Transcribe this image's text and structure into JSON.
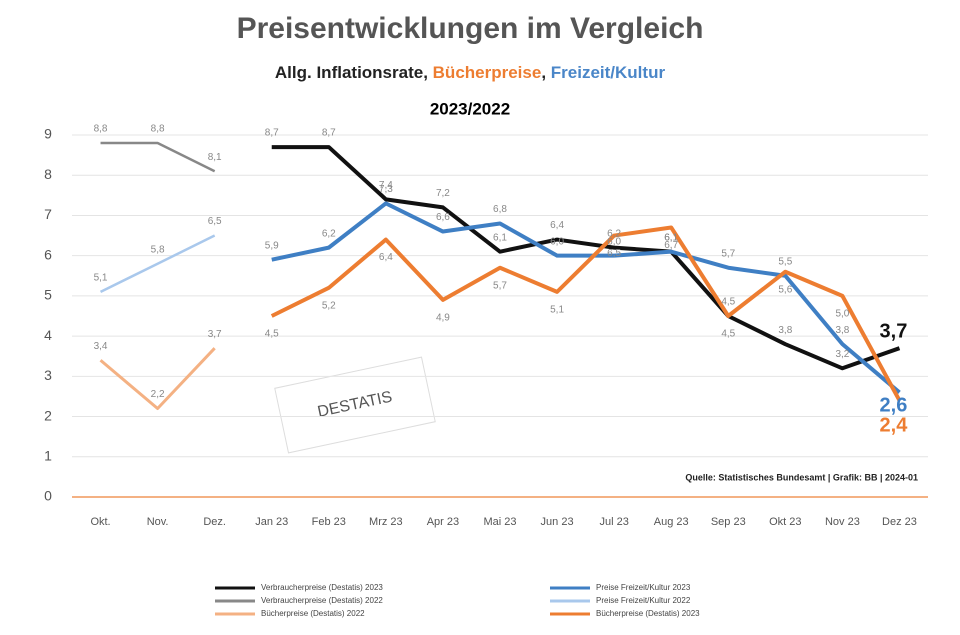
{
  "chart_data": {
    "type": "line",
    "title": "Preisentwicklungen im  Vergleich",
    "subtitle_parts": [
      {
        "text": "Allg. Inflationsrate, ",
        "color": "#222222"
      },
      {
        "text": "Bücherpreise",
        "color": "#ed7d31"
      },
      {
        "text": ", ",
        "color": "#222222"
      },
      {
        "text": "Freizeit/Kultur",
        "color": "#4a86c8"
      }
    ],
    "subtitle2": "2023/2022",
    "source": "Quelle: Statistisches Bundesamt | Grafik: BB | 2024-01",
    "stamp": "DESTATIS",
    "categories": [
      "Okt.",
      "Nov.",
      "Dez.",
      "Jan 23",
      "Feb 23",
      "Mrz 23",
      "Apr 23",
      "Mai 23",
      "Jun 23",
      "Jul 23",
      "Aug 23",
      "Sep 23",
      "Okt 23",
      "Nov 23",
      "Dez 23"
    ],
    "ylim": [
      0,
      9
    ],
    "yticks": [
      0,
      1,
      2,
      3,
      4,
      5,
      6,
      7,
      8,
      9
    ],
    "grid": true,
    "series": [
      {
        "name": "Verbraucherpreise (Destatis) 2023",
        "color": "#111111",
        "width": 4,
        "values": [
          null,
          null,
          null,
          8.7,
          8.7,
          7.4,
          7.2,
          6.1,
          6.4,
          6.2,
          6.1,
          4.5,
          3.8,
          3.2,
          3.7
        ],
        "value_labels": [
          null,
          null,
          null,
          "8,7",
          "8,7",
          "7,4",
          "7,2",
          "6,1",
          "6,4",
          "6,2",
          "6,1",
          "4,5",
          "3,8",
          "3,2",
          "3,7"
        ]
      },
      {
        "name": "Verbraucherpreise (Destatis) 2022",
        "color": "#888888",
        "width": 2.5,
        "values": [
          8.8,
          8.8,
          8.1,
          null,
          null,
          null,
          null,
          null,
          null,
          null,
          null,
          null,
          null,
          null,
          null
        ],
        "value_labels": [
          "8,8",
          "8,8",
          "8,1",
          null,
          null,
          null,
          null,
          null,
          null,
          null,
          null,
          null,
          null,
          null,
          null
        ]
      },
      {
        "name": "Bücherpreise (Destatis) 2022",
        "color": "#f4b183",
        "width": 3,
        "values": [
          3.4,
          2.2,
          3.7,
          null,
          null,
          null,
          null,
          null,
          null,
          null,
          null,
          null,
          null,
          null,
          null
        ],
        "value_labels": [
          "3,4",
          "2,2",
          "3,7",
          null,
          null,
          null,
          null,
          null,
          null,
          null,
          null,
          null,
          null,
          null,
          null
        ]
      },
      {
        "name": "Preise Freizeit/Kultur 2023",
        "color": "#3f7fc4",
        "width": 4,
        "values": [
          null,
          null,
          null,
          5.9,
          6.2,
          7.3,
          6.6,
          6.8,
          6.0,
          6.0,
          6.1,
          5.7,
          5.5,
          3.8,
          2.6
        ],
        "value_labels": [
          null,
          null,
          null,
          "5,9",
          "6,2",
          "7,3",
          "6,6",
          "6,8",
          "6,0",
          "6,0",
          "6,1",
          "5,7",
          "5,5",
          "3,8",
          "2,6"
        ]
      },
      {
        "name": "Preise Freizeit/Kultur 2022",
        "color": "#a9c8ec",
        "width": 2.5,
        "values": [
          5.1,
          5.8,
          6.5,
          null,
          null,
          null,
          null,
          null,
          null,
          null,
          null,
          null,
          null,
          null,
          null
        ],
        "value_labels": [
          "5,1",
          "5,8",
          "6,5",
          null,
          null,
          null,
          null,
          null,
          null,
          null,
          null,
          null,
          null,
          null,
          null
        ]
      },
      {
        "name": "Bücherpreise (Destatis) 2023",
        "color": "#ed7d31",
        "width": 4,
        "values": [
          null,
          null,
          null,
          4.5,
          5.2,
          6.4,
          4.9,
          5.7,
          5.1,
          6.5,
          6.7,
          4.5,
          5.6,
          5.0,
          2.4
        ],
        "value_labels": [
          null,
          null,
          null,
          "4,5",
          "5,2",
          "6,4",
          "4,9",
          "5,7",
          "5,1",
          "6,5",
          "6,7",
          "4,5",
          "5,6",
          "5,0",
          "2,4"
        ]
      }
    ],
    "axis_color": "#f4b183"
  }
}
